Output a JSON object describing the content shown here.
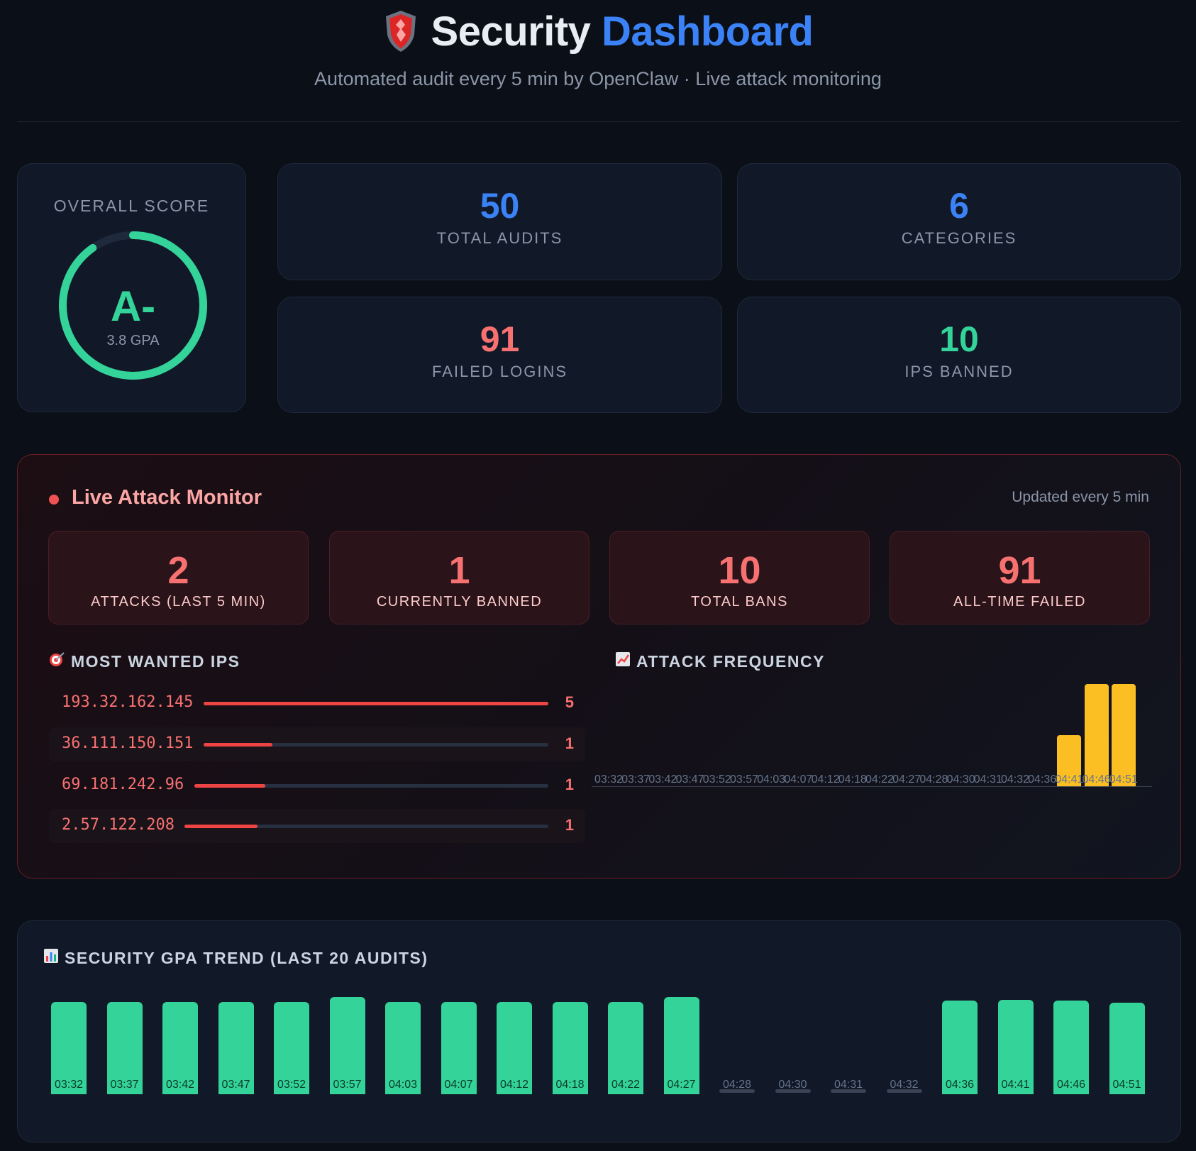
{
  "header": {
    "title_1": "Security",
    "title_2": "Dashboard",
    "subtitle": "Automated audit every 5 min by OpenClaw · Live attack monitoring"
  },
  "score": {
    "label": "OVERALL SCORE",
    "grade": "A-",
    "gpa": "3.8 GPA",
    "gpa_value": 3.8,
    "gpa_max": 4.0
  },
  "stats": [
    {
      "value": "50",
      "label": "TOTAL AUDITS",
      "color": "#3b82f6"
    },
    {
      "value": "6",
      "label": "CATEGORIES",
      "color": "#3b82f6"
    },
    {
      "value": "91",
      "label": "FAILED LOGINS",
      "color": "#f87171"
    },
    {
      "value": "10",
      "label": "IPS BANNED",
      "color": "#34d399"
    }
  ],
  "live": {
    "title": "Live Attack Monitor",
    "updated": "Updated every 5 min",
    "metrics": [
      {
        "value": "2",
        "label": "ATTACKS (LAST 5 MIN)"
      },
      {
        "value": "1",
        "label": "CURRENTLY BANNED"
      },
      {
        "value": "10",
        "label": "TOTAL BANS"
      },
      {
        "value": "91",
        "label": "ALL-TIME FAILED"
      }
    ],
    "wanted_title": "MOST WANTED IPS",
    "wanted_icon": "target-icon",
    "wanted": [
      {
        "ip": "193.32.162.145",
        "count": "5",
        "fraction": 1.0
      },
      {
        "ip": "36.111.150.151",
        "count": "1",
        "fraction": 0.2
      },
      {
        "ip": "69.181.242.96",
        "count": "1",
        "fraction": 0.2
      },
      {
        "ip": "2.57.122.208",
        "count": "1",
        "fraction": 0.2
      }
    ],
    "frequency_title": "ATTACK FREQUENCY",
    "frequency_icon": "chart-up-icon"
  },
  "trend": {
    "title": "SECURITY GPA TREND (LAST 20 AUDITS)",
    "icon": "bar-chart-icon"
  },
  "chart_data": [
    {
      "type": "bar",
      "title": "ATTACK FREQUENCY",
      "categories": [
        "03:32",
        "03:37",
        "03:42",
        "03:47",
        "03:52",
        "03:57",
        "04:03",
        "04:07",
        "04:12",
        "04:18",
        "04:22",
        "04:27",
        "04:28",
        "04:30",
        "04:31",
        "04:32",
        "04:36",
        "04:41",
        "04:46",
        "04:51"
      ],
      "values": [
        0,
        0,
        0,
        0,
        0,
        0,
        0,
        0,
        0,
        0,
        0,
        0,
        0,
        0,
        0,
        0,
        0,
        2,
        4,
        4
      ],
      "color": "#fbbf24"
    },
    {
      "type": "bar",
      "title": "SECURITY GPA TREND (LAST 20 AUDITS)",
      "categories": [
        "03:32",
        "03:37",
        "03:42",
        "03:47",
        "03:52",
        "03:57",
        "04:03",
        "04:07",
        "04:12",
        "04:18",
        "04:22",
        "04:27",
        "04:28",
        "04:30",
        "04:31",
        "04:32",
        "04:36",
        "04:41",
        "04:46",
        "04:51"
      ],
      "values": [
        3.8,
        3.8,
        3.8,
        3.8,
        3.8,
        4.0,
        3.8,
        3.8,
        3.8,
        3.8,
        3.8,
        4.0,
        0,
        0,
        0,
        0,
        3.85,
        3.87,
        3.85,
        3.78
      ],
      "ylim": [
        0,
        4.0
      ],
      "color": "#34d399"
    }
  ]
}
